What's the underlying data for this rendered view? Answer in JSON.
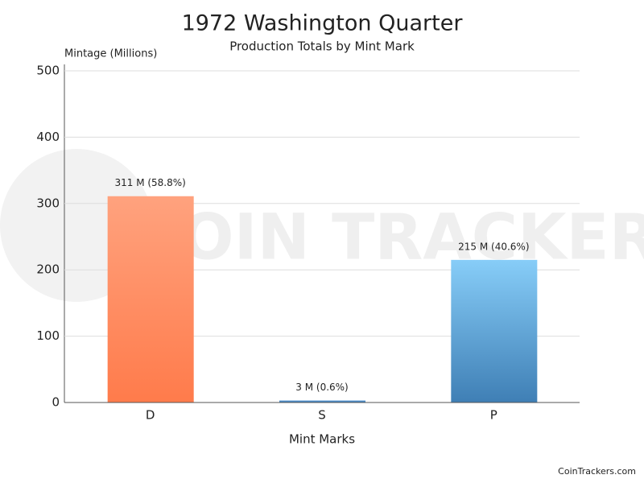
{
  "chart_data": {
    "type": "bar",
    "title": "1972 Washington Quarter",
    "subtitle": "Production Totals by Mint Mark",
    "y_axis_label": "Mintage (Millions)",
    "x_axis_label": "Mint Marks",
    "categories": [
      "D",
      "S",
      "P"
    ],
    "values": [
      311,
      3,
      215
    ],
    "value_labels": [
      "311 M (58.8%)",
      "3 M (0.6%)",
      "215 M (40.6%)"
    ],
    "colors": [
      [
        "#ffa27e",
        "#ff7b4b"
      ],
      [
        "#5b9bd5",
        "#3a78b0"
      ],
      [
        "#87cdf8",
        "#3f7fb5"
      ]
    ],
    "ylim": [
      0,
      500
    ],
    "yticks": [
      0,
      100,
      200,
      300,
      400,
      500
    ],
    "grid": true,
    "watermark": "COIN TRACKERS",
    "footer": "CoinTrackers.com"
  }
}
